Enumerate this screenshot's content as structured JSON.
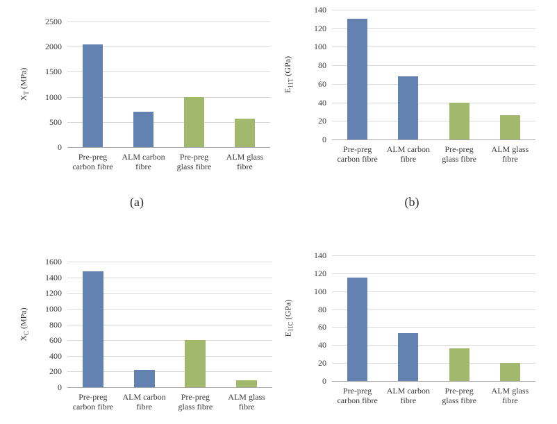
{
  "figure": {
    "background": "#ffffff",
    "grid_color": "#d9d9d9",
    "axis_color": "#a6a6a6",
    "text_color": "#3a3a3a",
    "carbon_bar_color": "#6382B1",
    "glass_bar_color": "#A2B86C"
  },
  "captions": [
    {
      "text": "(a)"
    },
    {
      "text": "(b)"
    }
  ],
  "chart_data": [
    {
      "id": "a",
      "type": "bar",
      "title": "",
      "xlabel": "",
      "ylabel": "XT (MPa)",
      "ylabel_base": "X",
      "ylabel_sub": "T",
      "ylabel_unit": " (MPa)",
      "categories": [
        [
          "Pre-preg",
          "carbon fibre"
        ],
        [
          "ALM carbon",
          "fibre"
        ],
        [
          "Pre-preg",
          "glass fibre"
        ],
        [
          "ALM glass",
          "fibre"
        ]
      ],
      "values": [
        2050,
        700,
        1000,
        570
      ],
      "ylim": [
        0,
        2500
      ],
      "yticks": [
        0,
        500,
        1000,
        1500,
        2000,
        2500
      ],
      "grid": true,
      "legend": "none",
      "bar_colors": [
        "#6382B1",
        "#6382B1",
        "#A2B86C",
        "#A2B86C"
      ]
    },
    {
      "id": "b",
      "type": "bar",
      "title": "",
      "xlabel": "",
      "ylabel": "E11T (GPa)",
      "ylabel_base": "E",
      "ylabel_sub": "11T",
      "ylabel_unit": " (GPa)",
      "categories": [
        [
          "Pre-preg",
          "carbon fibre"
        ],
        [
          "ALM carbon",
          "fibre"
        ],
        [
          "Pre-preg",
          "glass fibre"
        ],
        [
          "ALM glass",
          "fibre"
        ]
      ],
      "values": [
        130,
        68,
        40,
        26
      ],
      "ylim": [
        0,
        140
      ],
      "yticks": [
        0,
        20,
        40,
        60,
        80,
        100,
        120,
        140
      ],
      "grid": true,
      "legend": "none",
      "bar_colors": [
        "#6382B1",
        "#6382B1",
        "#A2B86C",
        "#A2B86C"
      ]
    },
    {
      "id": "c",
      "type": "bar",
      "title": "",
      "xlabel": "",
      "ylabel": "XC (MPa)",
      "ylabel_base": "X",
      "ylabel_sub": "C",
      "ylabel_unit": " (MPa)",
      "categories": [
        [
          "Pre-preg",
          "carbon fibre"
        ],
        [
          "ALM carbon",
          "fibre"
        ],
        [
          "Pre-preg",
          "glass fibre"
        ],
        [
          "ALM glass",
          "fibre"
        ]
      ],
      "values": [
        1480,
        220,
        600,
        90
      ],
      "ylim": [
        0,
        1600
      ],
      "yticks": [
        0,
        200,
        400,
        600,
        800,
        1000,
        1200,
        1400,
        1600
      ],
      "grid": true,
      "legend": "none",
      "bar_colors": [
        "#6382B1",
        "#6382B1",
        "#A2B86C",
        "#A2B86C"
      ]
    },
    {
      "id": "d",
      "type": "bar",
      "title": "",
      "xlabel": "",
      "ylabel": "E11C (GPa)",
      "ylabel_base": "E",
      "ylabel_sub": "11C",
      "ylabel_unit": " (GPa)",
      "categories": [
        [
          "Pre-preg",
          "carbon fibre"
        ],
        [
          "ALM carbon",
          "fibre"
        ],
        [
          "Pre-preg",
          "glass fibre"
        ],
        [
          "ALM glass",
          "fibre"
        ]
      ],
      "values": [
        115,
        53,
        36,
        20
      ],
      "ylim": [
        0,
        140
      ],
      "yticks": [
        0,
        20,
        40,
        60,
        80,
        100,
        120,
        140
      ],
      "grid": true,
      "legend": "none",
      "bar_colors": [
        "#6382B1",
        "#6382B1",
        "#A2B86C",
        "#A2B86C"
      ]
    }
  ]
}
